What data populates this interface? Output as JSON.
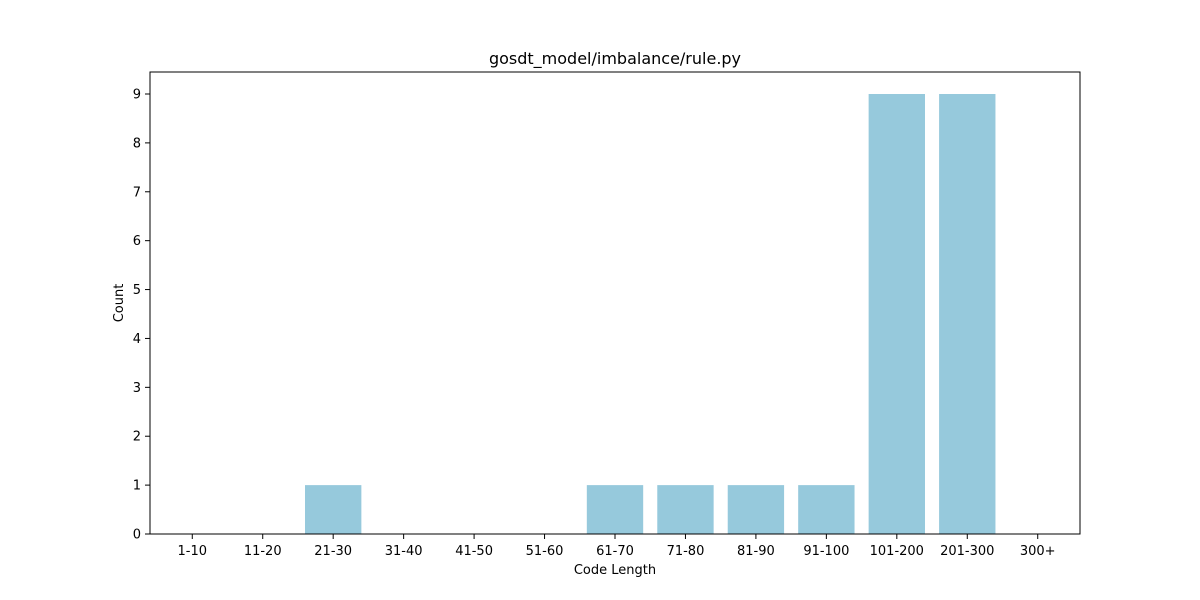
{
  "chart_data": {
    "type": "bar",
    "title": "gosdt_model/imbalance/rule.py",
    "xlabel": "Code Length",
    "ylabel": "Count",
    "categories": [
      "1-10",
      "11-20",
      "21-30",
      "31-40",
      "41-50",
      "51-60",
      "61-70",
      "71-80",
      "81-90",
      "91-100",
      "101-200",
      "201-300",
      "300+"
    ],
    "values": [
      0,
      0,
      1,
      0,
      0,
      0,
      1,
      1,
      1,
      1,
      9,
      9,
      0
    ],
    "ylim": [
      0,
      9.45
    ],
    "yticks": [
      0,
      1,
      2,
      3,
      4,
      5,
      6,
      7,
      8,
      9
    ],
    "bar_color": "#96c9dc",
    "grid": false,
    "legend": "none"
  }
}
